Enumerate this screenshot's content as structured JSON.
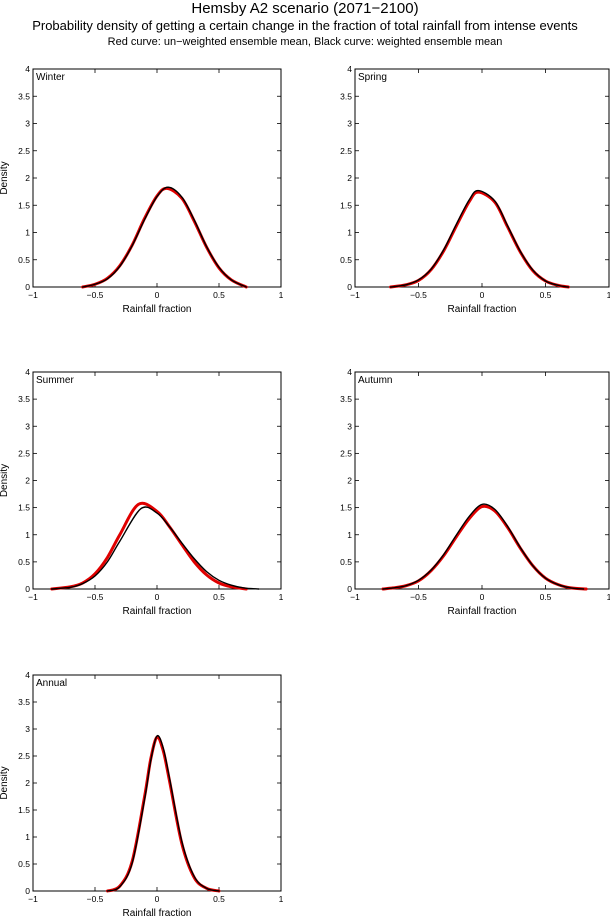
{
  "header": {
    "title": "Hemsby A2 scenario (2071−2100)",
    "subtitle": "Probability density of getting a certain change in the fraction of total rainfall from intense events",
    "caption": "Red curve: un−weighted ensemble mean, Black curve: weighted ensemble mean"
  },
  "colors": {
    "unweighted": "#e00000",
    "weighted": "#000000"
  },
  "chart_data": [
    {
      "type": "line",
      "panel_label": "Winter",
      "xlabel": "Rainfall fraction",
      "ylabel": "Density",
      "xlim": [
        -1,
        1
      ],
      "ylim": [
        0,
        4
      ],
      "xticks": [
        -1,
        -0.5,
        0,
        0.5,
        1
      ],
      "xtick_labels": [
        "−1",
        "−0.5",
        "0",
        "0.5",
        "1"
      ],
      "yticks": [
        0,
        0.5,
        1,
        1.5,
        2,
        2.5,
        3,
        3.5,
        4
      ],
      "ytick_labels": [
        "0",
        "0.5",
        "1",
        "1.5",
        "2",
        "2.5",
        "3",
        "3.5",
        "4"
      ],
      "series": [
        {
          "color": "red",
          "x": [
            -0.6,
            -0.5,
            -0.4,
            -0.3,
            -0.2,
            -0.1,
            0.0,
            0.08,
            0.2,
            0.3,
            0.4,
            0.5,
            0.6,
            0.72
          ],
          "y": [
            0.0,
            0.05,
            0.16,
            0.39,
            0.77,
            1.26,
            1.67,
            1.81,
            1.63,
            1.21,
            0.73,
            0.35,
            0.13,
            0.0
          ]
        },
        {
          "color": "black",
          "x": [
            -0.6,
            -0.5,
            -0.4,
            -0.3,
            -0.2,
            -0.1,
            0.0,
            0.09,
            0.2,
            0.3,
            0.4,
            0.5,
            0.6,
            0.72
          ],
          "y": [
            0.0,
            0.05,
            0.15,
            0.38,
            0.76,
            1.24,
            1.66,
            1.83,
            1.65,
            1.23,
            0.74,
            0.36,
            0.13,
            0.0
          ]
        }
      ]
    },
    {
      "type": "line",
      "panel_label": "Spring",
      "xlabel": "Rainfall fraction",
      "ylabel": "",
      "xlim": [
        -1,
        1
      ],
      "ylim": [
        0,
        4
      ],
      "xticks": [
        -1,
        -0.5,
        0,
        0.5,
        1
      ],
      "xtick_labels": [
        "−1",
        "−0.5",
        "0",
        "0.5",
        "1"
      ],
      "yticks": [
        0,
        0.5,
        1,
        1.5,
        2,
        2.5,
        3,
        3.5,
        4
      ],
      "ytick_labels": [
        "0",
        "0.5",
        "1",
        "1.5",
        "2",
        "2.5",
        "3",
        "3.5",
        "4"
      ],
      "series": [
        {
          "color": "red",
          "x": [
            -0.72,
            -0.6,
            -0.5,
            -0.4,
            -0.3,
            -0.2,
            -0.1,
            -0.03,
            0.1,
            0.2,
            0.3,
            0.4,
            0.5,
            0.6,
            0.68
          ],
          "y": [
            0.0,
            0.04,
            0.12,
            0.32,
            0.67,
            1.13,
            1.57,
            1.74,
            1.56,
            1.11,
            0.65,
            0.3,
            0.11,
            0.03,
            0.0
          ]
        },
        {
          "color": "black",
          "x": [
            -0.72,
            -0.6,
            -0.5,
            -0.4,
            -0.3,
            -0.2,
            -0.1,
            -0.03,
            0.1,
            0.2,
            0.3,
            0.4,
            0.5,
            0.6,
            0.68
          ],
          "y": [
            0.0,
            0.04,
            0.13,
            0.33,
            0.69,
            1.16,
            1.6,
            1.77,
            1.58,
            1.13,
            0.66,
            0.31,
            0.11,
            0.03,
            0.0
          ]
        }
      ]
    },
    {
      "type": "line",
      "panel_label": "Summer",
      "xlabel": "Rainfall fraction",
      "ylabel": "Density",
      "xlim": [
        -1,
        1
      ],
      "ylim": [
        0,
        4
      ],
      "xticks": [
        -1,
        -0.5,
        0,
        0.5,
        1
      ],
      "xtick_labels": [
        "−1",
        "−0.5",
        "0",
        "0.5",
        "1"
      ],
      "yticks": [
        0,
        0.5,
        1,
        1.5,
        2,
        2.5,
        3,
        3.5,
        4
      ],
      "ytick_labels": [
        "0",
        "0.5",
        "1",
        "1.5",
        "2",
        "2.5",
        "3",
        "3.5",
        "4"
      ],
      "series": [
        {
          "color": "red",
          "x": [
            -0.85,
            -0.7,
            -0.6,
            -0.5,
            -0.4,
            -0.3,
            -0.15,
            0.0,
            0.1,
            0.2,
            0.3,
            0.4,
            0.5,
            0.6,
            0.72
          ],
          "y": [
            0.0,
            0.04,
            0.11,
            0.28,
            0.58,
            1.0,
            1.56,
            1.43,
            1.15,
            0.82,
            0.5,
            0.26,
            0.11,
            0.04,
            0.0
          ]
        },
        {
          "color": "black",
          "x": [
            -0.85,
            -0.7,
            -0.6,
            -0.5,
            -0.4,
            -0.3,
            -0.13,
            0.0,
            0.1,
            0.2,
            0.3,
            0.4,
            0.5,
            0.6,
            0.7,
            0.82
          ],
          "y": [
            0.0,
            0.03,
            0.1,
            0.24,
            0.5,
            0.88,
            1.48,
            1.4,
            1.15,
            0.85,
            0.56,
            0.32,
            0.16,
            0.07,
            0.02,
            0.0
          ]
        }
      ]
    },
    {
      "type": "line",
      "panel_label": "Autumn",
      "xlabel": "Rainfall fraction",
      "ylabel": "",
      "xlim": [
        -1,
        1
      ],
      "ylim": [
        0,
        4
      ],
      "xticks": [
        -1,
        -0.5,
        0,
        0.5,
        1
      ],
      "xtick_labels": [
        "−1",
        "−0.5",
        "0",
        "0.5",
        "1"
      ],
      "yticks": [
        0,
        0.5,
        1,
        1.5,
        2,
        2.5,
        3,
        3.5,
        4
      ],
      "ytick_labels": [
        "0",
        "0.5",
        "1",
        "1.5",
        "2",
        "2.5",
        "3",
        "3.5",
        "4"
      ],
      "series": [
        {
          "color": "red",
          "x": [
            -0.78,
            -0.7,
            -0.6,
            -0.5,
            -0.4,
            -0.3,
            -0.2,
            -0.1,
            0.0,
            0.1,
            0.2,
            0.3,
            0.4,
            0.5,
            0.6,
            0.7,
            0.82
          ],
          "y": [
            0.0,
            0.02,
            0.06,
            0.15,
            0.34,
            0.62,
            0.97,
            1.3,
            1.52,
            1.44,
            1.14,
            0.76,
            0.43,
            0.2,
            0.08,
            0.02,
            0.0
          ]
        },
        {
          "color": "black",
          "x": [
            -0.78,
            -0.7,
            -0.6,
            -0.5,
            -0.4,
            -0.3,
            -0.2,
            -0.1,
            0.0,
            0.1,
            0.2,
            0.3,
            0.4,
            0.5,
            0.6,
            0.7,
            0.8
          ],
          "y": [
            0.0,
            0.02,
            0.06,
            0.16,
            0.35,
            0.64,
            1.0,
            1.34,
            1.56,
            1.47,
            1.16,
            0.77,
            0.43,
            0.2,
            0.08,
            0.02,
            0.0
          ]
        }
      ]
    },
    {
      "type": "line",
      "panel_label": "Annual",
      "xlabel": "Rainfall fraction",
      "ylabel": "Density",
      "xlim": [
        -1,
        1
      ],
      "ylim": [
        0,
        4
      ],
      "xticks": [
        -1,
        -0.5,
        0,
        0.5,
        1
      ],
      "xtick_labels": [
        "−1",
        "−0.5",
        "0",
        "0.5",
        "1"
      ],
      "yticks": [
        0,
        0.5,
        1,
        1.5,
        2,
        2.5,
        3,
        3.5,
        4
      ],
      "ytick_labels": [
        "0",
        "0.5",
        "1",
        "1.5",
        "2",
        "2.5",
        "3",
        "3.5",
        "4"
      ],
      "series": [
        {
          "color": "red",
          "x": [
            -0.4,
            -0.3,
            -0.2,
            -0.1,
            -0.05,
            0.0,
            0.05,
            0.1,
            0.2,
            0.3,
            0.4,
            0.5
          ],
          "y": [
            0.0,
            0.09,
            0.55,
            1.75,
            2.45,
            2.85,
            2.6,
            2.05,
            0.88,
            0.25,
            0.05,
            0.0
          ]
        },
        {
          "color": "black",
          "x": [
            -0.4,
            -0.3,
            -0.2,
            -0.1,
            -0.05,
            0.0,
            0.05,
            0.1,
            0.2,
            0.3,
            0.4,
            0.5
          ],
          "y": [
            0.0,
            0.08,
            0.52,
            1.7,
            2.42,
            2.87,
            2.65,
            2.1,
            0.92,
            0.27,
            0.05,
            0.0
          ]
        }
      ]
    }
  ]
}
